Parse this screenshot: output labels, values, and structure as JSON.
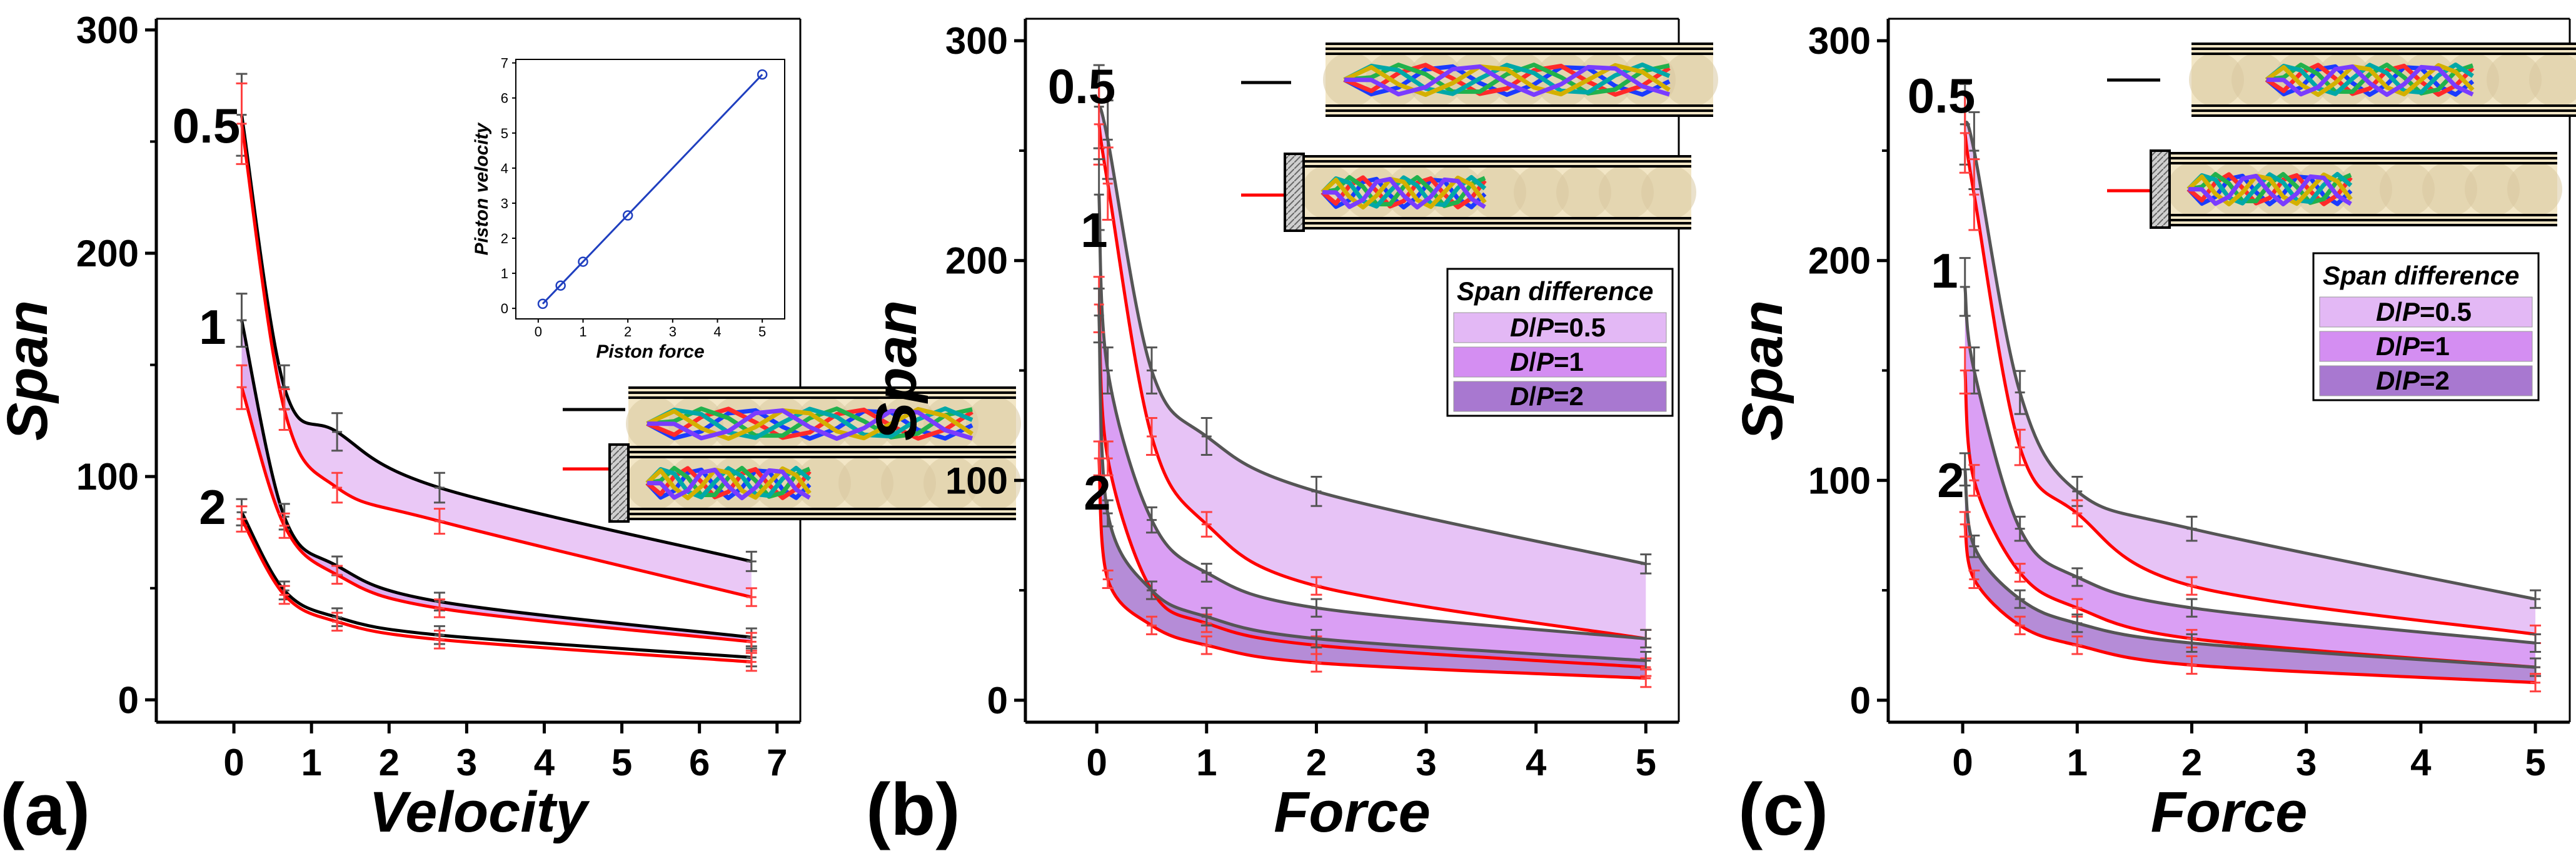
{
  "chart_data": [
    {
      "type": "line",
      "panel_label": "(a)",
      "xlabel": "Velocity",
      "ylabel": "Span",
      "xlim": [
        -1,
        7.3
      ],
      "ylim": [
        -10,
        305
      ],
      "xticks": [
        "0",
        "1",
        "2",
        "3",
        "4",
        "5",
        "6",
        "7"
      ],
      "yticks": [
        "0",
        "100",
        "200",
        "300"
      ],
      "curve_labels": [
        "0.5",
        "1",
        "2"
      ],
      "series": [
        {
          "color": "#000000",
          "x": [
            0.1,
            0.65,
            1.33,
            2.65,
            6.67
          ],
          "y": [
            262,
            140,
            120,
            95,
            62
          ]
        },
        {
          "color": "#ff0000",
          "x": [
            0.1,
            0.65,
            1.33,
            2.65,
            6.67
          ],
          "y": [
            258,
            130,
            95,
            80,
            46
          ]
        },
        {
          "color": "#000000",
          "x": [
            0.1,
            0.65,
            1.33,
            2.65,
            6.67
          ],
          "y": [
            170,
            82,
            60,
            44,
            28
          ]
        },
        {
          "color": "#ff0000",
          "x": [
            0.1,
            0.65,
            1.33,
            2.65,
            6.67
          ],
          "y": [
            140,
            78,
            56,
            41,
            26
          ]
        },
        {
          "color": "#000000",
          "x": [
            0.1,
            0.65,
            1.33,
            2.65,
            6.67
          ],
          "y": [
            84,
            49,
            37,
            29,
            19
          ]
        },
        {
          "color": "#ff0000",
          "x": [
            0.1,
            0.65,
            1.33,
            2.65,
            6.67
          ],
          "y": [
            81,
            47,
            35,
            27,
            17
          ]
        }
      ],
      "inset": {
        "type": "scatter",
        "xlabel": "Piston force",
        "ylabel": "Piston velocity",
        "x": [
          0.1,
          0.5,
          1,
          2,
          5
        ],
        "y": [
          0.13,
          0.65,
          1.33,
          2.65,
          6.67
        ],
        "xticks": [
          "0",
          "1",
          "2",
          "3",
          "4",
          "5"
        ],
        "yticks": [
          "0",
          "1",
          "2",
          "3",
          "4",
          "5",
          "6",
          "7"
        ],
        "color": "#1f3fbf"
      }
    },
    {
      "type": "area",
      "panel_label": "(b)",
      "xlabel": "Force",
      "ylabel": "Span",
      "xlim": [
        -0.65,
        5.3
      ],
      "ylim": [
        -10,
        310
      ],
      "xticks": [
        "0",
        "1",
        "2",
        "3",
        "4",
        "5"
      ],
      "yticks": [
        "0",
        "100",
        "200",
        "300"
      ],
      "curve_labels": [
        "0.5",
        "1",
        "2"
      ],
      "legend_title": "Span difference",
      "legend": [
        "D/P=0.5",
        "D/P=1",
        "D/P=2"
      ],
      "fills": [
        "#e3b8f5",
        "#d48ef2",
        "#a878d0"
      ],
      "series": [
        {
          "color": "#555555",
          "x": [
            0.02,
            0.1,
            0.5,
            1,
            2,
            5
          ],
          "y": [
            270,
            255,
            150,
            120,
            95,
            62
          ]
        },
        {
          "color": "#ff0000",
          "x": [
            0.02,
            0.1,
            0.5,
            1,
            2,
            5
          ],
          "y": [
            262,
            235,
            120,
            80,
            52,
            28
          ]
        },
        {
          "color": "#555555",
          "x": [
            0.02,
            0.1,
            0.5,
            1,
            2,
            5
          ],
          "y": [
            230,
            150,
            82,
            58,
            42,
            28
          ]
        },
        {
          "color": "#ff0000",
          "x": [
            0.02,
            0.1,
            0.5,
            1,
            2,
            5
          ],
          "y": [
            180,
            110,
            50,
            35,
            25,
            15
          ]
        },
        {
          "color": "#555555",
          "x": [
            0.02,
            0.1,
            0.5,
            1,
            2,
            5
          ],
          "y": [
            175,
            85,
            50,
            38,
            28,
            18
          ]
        },
        {
          "color": "#ff0000",
          "x": [
            0.02,
            0.1,
            0.5,
            1,
            2,
            5
          ],
          "y": [
            110,
            55,
            34,
            25,
            17,
            10
          ]
        }
      ]
    },
    {
      "type": "area",
      "panel_label": "(c)",
      "xlabel": "Force",
      "ylabel": "Span",
      "xlim": [
        -0.65,
        5.3
      ],
      "ylim": [
        -10,
        310
      ],
      "xticks": [
        "0",
        "1",
        "2",
        "3",
        "4",
        "5"
      ],
      "yticks": [
        "0",
        "100",
        "200",
        "300"
      ],
      "curve_labels": [
        "0.5",
        "1",
        "2"
      ],
      "legend_title": "Span difference",
      "legend": [
        "D/P=0.5",
        "D/P=1",
        "D/P=2"
      ],
      "fills": [
        "#e3b8f5",
        "#d48ef2",
        "#a878d0"
      ],
      "series": [
        {
          "color": "#555555",
          "x": [
            0.02,
            0.1,
            0.5,
            1,
            2,
            5
          ],
          "y": [
            262,
            250,
            140,
            95,
            78,
            46
          ]
        },
        {
          "color": "#ff0000",
          "x": [
            0.02,
            0.1,
            0.5,
            1,
            2,
            5
          ],
          "y": [
            258,
            230,
            115,
            85,
            52,
            30
          ]
        },
        {
          "color": "#555555",
          "x": [
            0.02,
            0.1,
            0.5,
            1,
            2,
            5
          ],
          "y": [
            188,
            150,
            78,
            56,
            42,
            26
          ]
        },
        {
          "color": "#ff0000",
          "x": [
            0.02,
            0.1,
            0.5,
            1,
            2,
            5
          ],
          "y": [
            150,
            100,
            58,
            42,
            28,
            15
          ]
        },
        {
          "color": "#555555",
          "x": [
            0.02,
            0.1,
            0.5,
            1,
            2,
            5
          ],
          "y": [
            105,
            70,
            46,
            35,
            26,
            15
          ]
        },
        {
          "color": "#ff0000",
          "x": [
            0.02,
            0.1,
            0.5,
            1,
            2,
            5
          ],
          "y": [
            80,
            55,
            34,
            25,
            16,
            8
          ]
        }
      ]
    }
  ]
}
